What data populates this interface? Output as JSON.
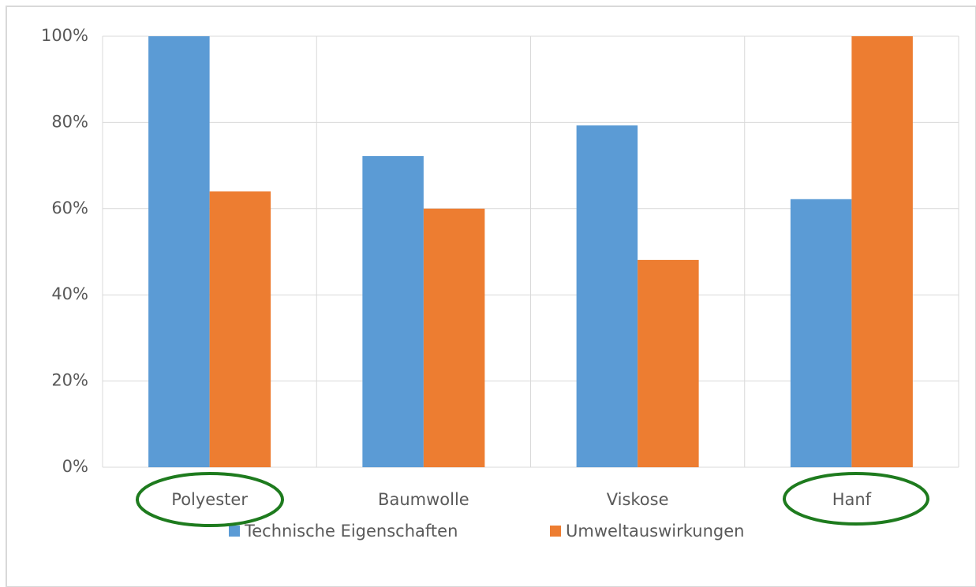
{
  "chart_data": {
    "type": "bar",
    "categories": [
      "Polyester",
      "Baumwolle",
      "Viskose",
      "Hanf"
    ],
    "series": [
      {
        "name": "Technische Eigenschaften",
        "color": "#5b9bd5",
        "values": [
          100,
          72.2,
          79.3,
          62.2
        ]
      },
      {
        "name": "Umweltauswirkungen",
        "color": "#ed7d31",
        "values": [
          64,
          60,
          48.1,
          100
        ]
      }
    ],
    "ylim": [
      0,
      100
    ],
    "yticks": [
      {
        "value": 0,
        "label": "0%"
      },
      {
        "value": 20,
        "label": "20%"
      },
      {
        "value": 40,
        "label": "40%"
      },
      {
        "value": 60,
        "label": "60%"
      },
      {
        "value": 80,
        "label": "80%"
      },
      {
        "value": 100,
        "label": "100%"
      }
    ],
    "grid": true,
    "legend": "bottom"
  }
}
